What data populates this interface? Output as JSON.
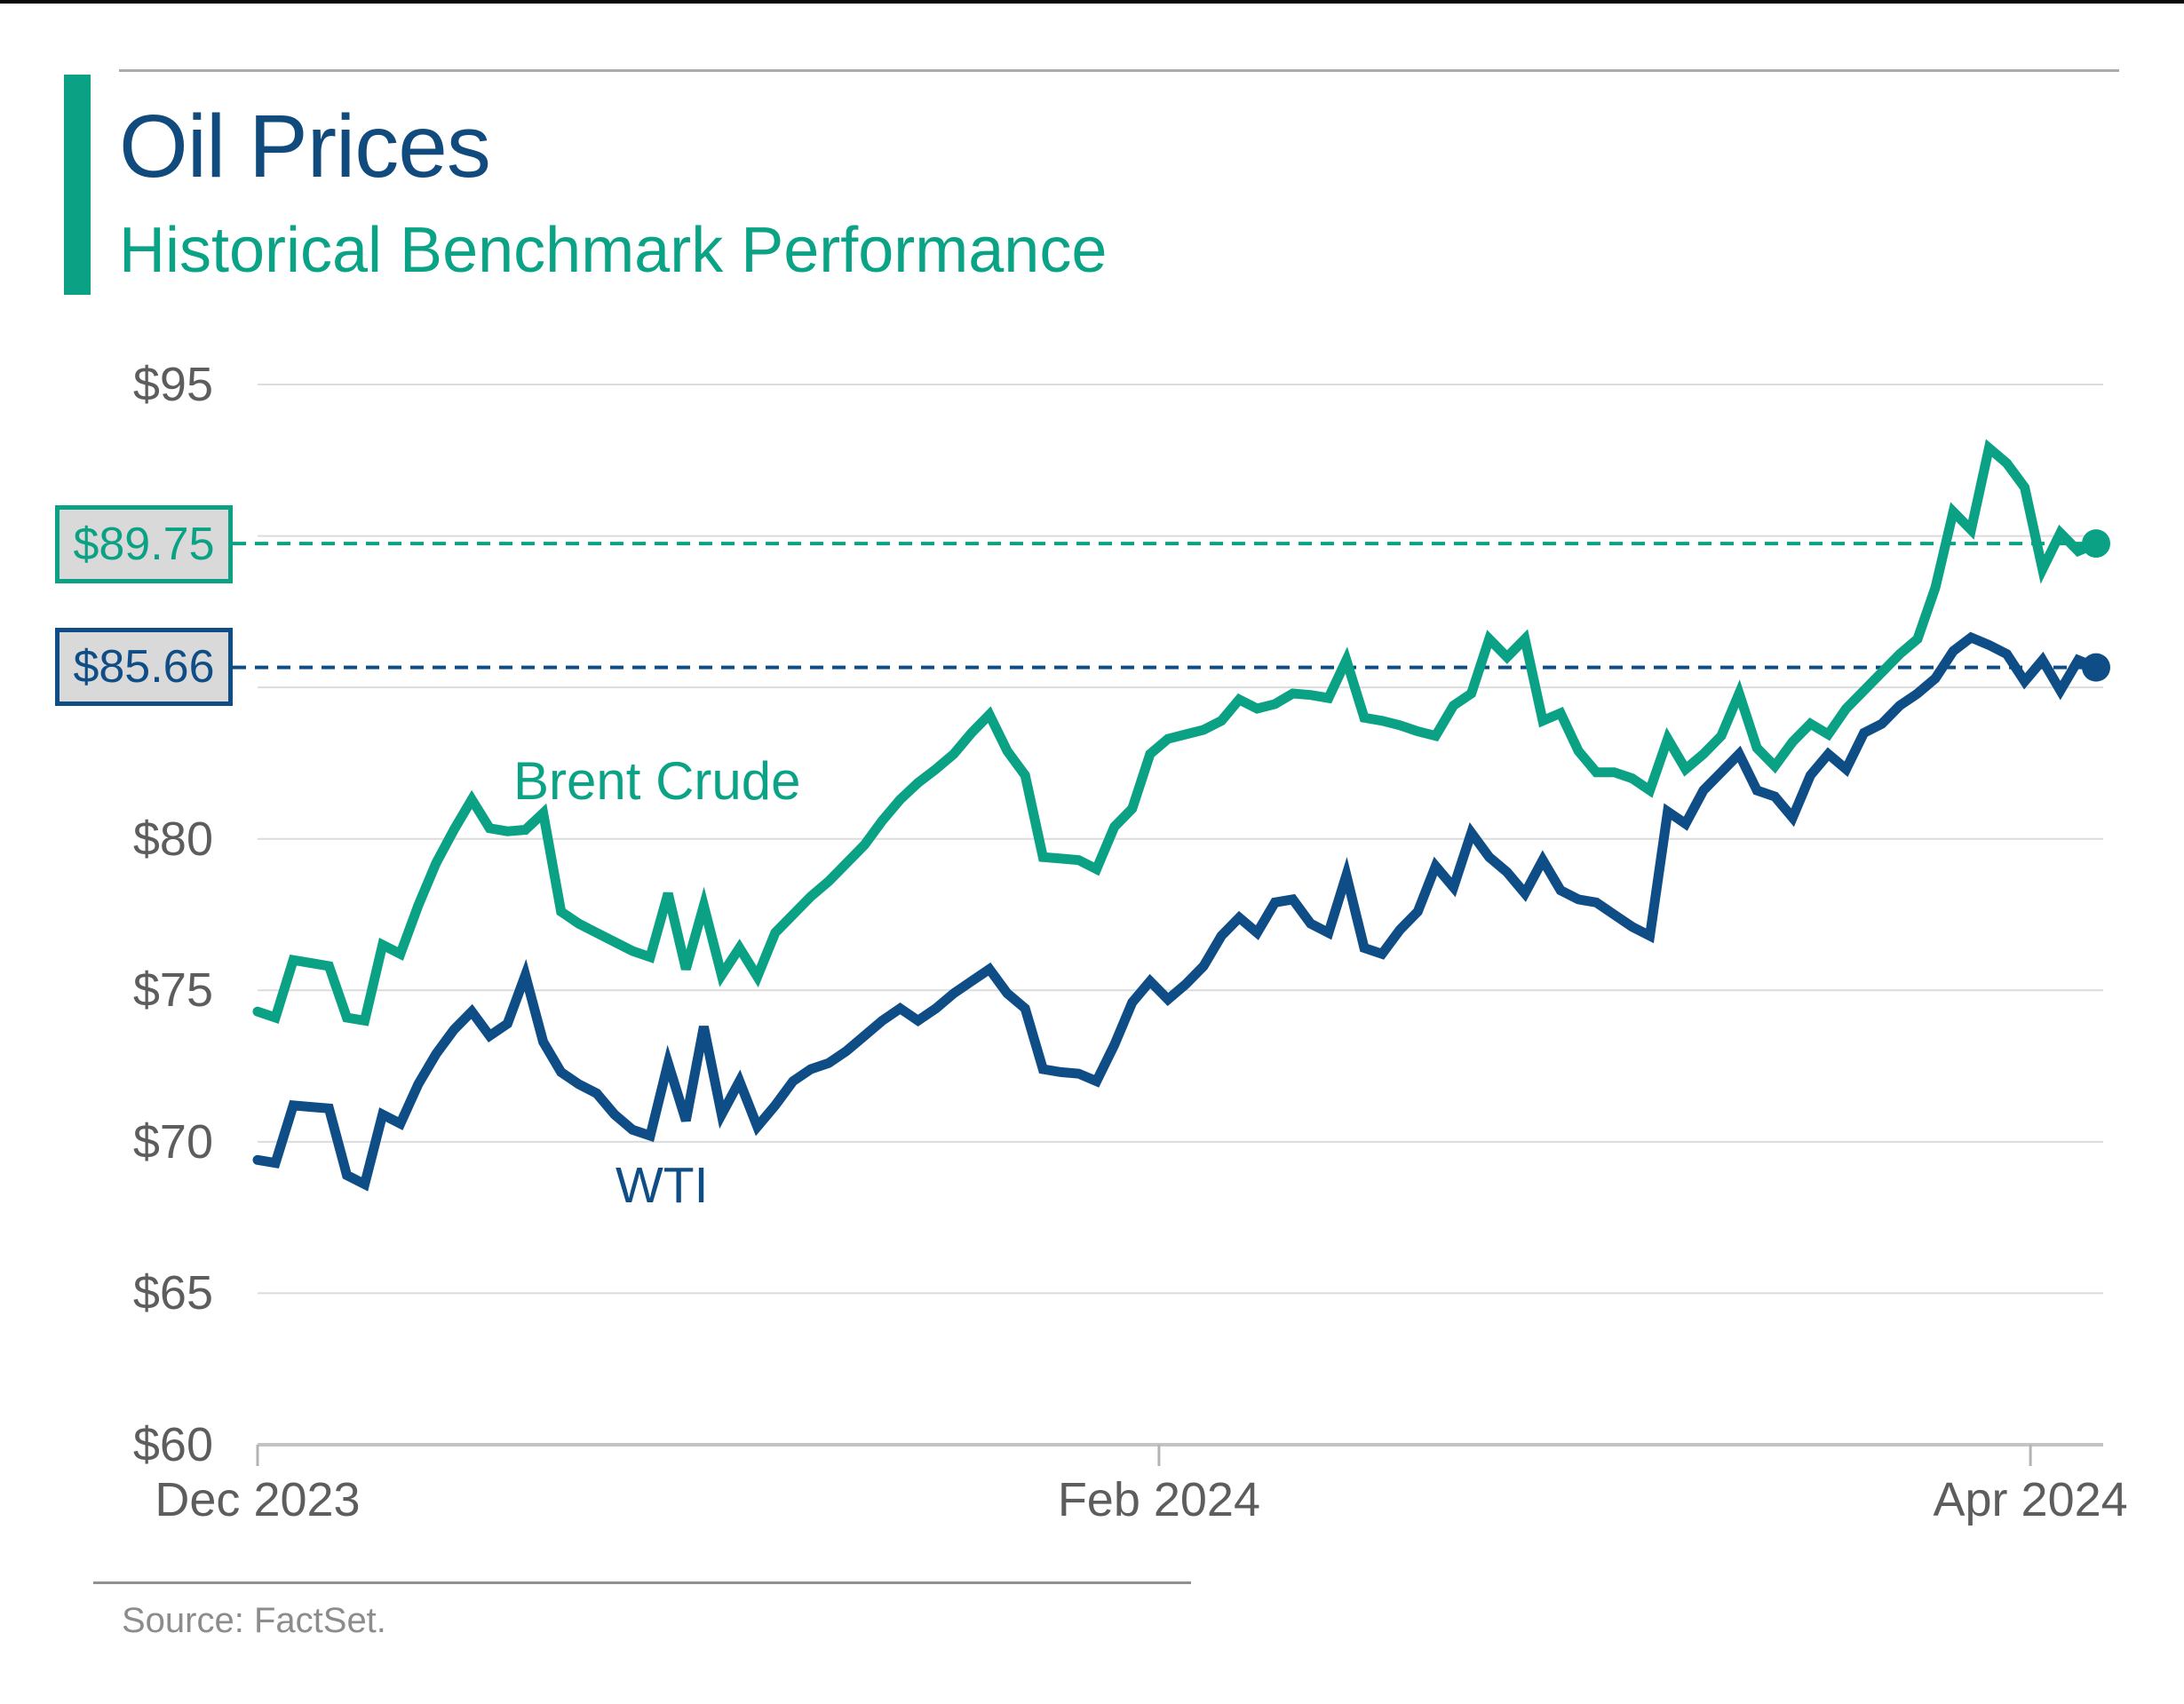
{
  "header": {
    "title": "Oil Prices",
    "subtitle": "Historical Benchmark Performance"
  },
  "source": {
    "label": "Source: FactSet."
  },
  "colors": {
    "brent_teal": "#0aa184",
    "wti_navy": "#0e4d85",
    "title_navy": "#114b7e",
    "gridline_gray": "#dcdcdc",
    "axis_baseline_gray": "#c4c4c4",
    "tick_gray": "#b4b4b4",
    "label_gray": "#5d5d5d",
    "callout_fill_gray": "#d9d9d9"
  },
  "chart_data": {
    "type": "line",
    "title": "Oil Prices",
    "subtitle": "Historical Benchmark Performance",
    "xlabel": "",
    "ylabel": "",
    "ylim": [
      60,
      95
    ],
    "grid": "horizontal-only",
    "legend_position": "inline-labels",
    "gridline_values": [
      95,
      90,
      85,
      80,
      75,
      70,
      65
    ],
    "baseline_value": 60,
    "y_axis": {
      "ticks": [
        {
          "label": "$95",
          "value": 95
        },
        {
          "label": "$80",
          "value": 80
        },
        {
          "label": "$75",
          "value": 75
        },
        {
          "label": "$70",
          "value": 70
        },
        {
          "label": "$65",
          "value": 65
        },
        {
          "label": "$60",
          "value": 60
        }
      ]
    },
    "x_axis": {
      "ticks": [
        {
          "label": "Dec 2023",
          "t": 0.0
        },
        {
          "label": "Feb 2024",
          "t": 0.4903
        },
        {
          "label": "Apr 2024",
          "t": 0.9643
        }
      ]
    },
    "series": [
      {
        "name": "Brent Crude",
        "color": "#0aa184",
        "last_value": 89.75,
        "last_label": "$89.75",
        "values": [
          74.3,
          74.1,
          76.0,
          75.9,
          75.8,
          74.1,
          74.0,
          76.5,
          76.2,
          77.8,
          79.2,
          80.3,
          81.3,
          80.35,
          80.25,
          80.3,
          80.85,
          77.6,
          77.2,
          76.9,
          76.6,
          76.3,
          76.1,
          78.2,
          75.7,
          77.8,
          75.5,
          76.4,
          75.45,
          76.9,
          77.5,
          78.1,
          78.6,
          79.2,
          79.8,
          80.6,
          81.3,
          81.85,
          82.3,
          82.8,
          83.5,
          84.1,
          82.9,
          82.1,
          79.4,
          79.35,
          79.3,
          79.0,
          80.4,
          81.0,
          82.8,
          83.3,
          83.45,
          83.6,
          83.9,
          84.6,
          84.3,
          84.45,
          84.8,
          84.75,
          84.65,
          85.9,
          84.0,
          83.9,
          83.75,
          83.55,
          83.4,
          84.4,
          84.8,
          86.6,
          86.0,
          86.6,
          83.9,
          84.15,
          82.9,
          82.2,
          82.2,
          82.0,
          81.6,
          83.3,
          82.3,
          82.8,
          83.4,
          84.8,
          83.0,
          82.4,
          83.2,
          83.8,
          83.45,
          84.3,
          84.9,
          85.5,
          86.1,
          86.6,
          88.3,
          90.8,
          90.2,
          92.9,
          92.4,
          91.6,
          88.9,
          90.1,
          89.5,
          89.75
        ]
      },
      {
        "name": "WTI",
        "color": "#0e4d85",
        "last_value": 85.66,
        "last_label": "$85.66",
        "values": [
          69.4,
          69.3,
          71.2,
          71.15,
          71.1,
          68.9,
          68.6,
          70.9,
          70.6,
          71.9,
          72.9,
          73.7,
          74.3,
          73.5,
          73.9,
          75.5,
          73.3,
          72.3,
          71.9,
          71.6,
          70.9,
          70.4,
          70.2,
          72.6,
          70.7,
          73.8,
          70.9,
          72.0,
          70.5,
          71.2,
          72.0,
          72.4,
          72.6,
          73.0,
          73.5,
          74.0,
          74.4,
          74.0,
          74.4,
          74.9,
          75.3,
          75.7,
          74.9,
          74.4,
          72.4,
          72.3,
          72.25,
          72.0,
          73.2,
          74.6,
          75.3,
          74.7,
          75.2,
          75.8,
          76.8,
          77.4,
          76.9,
          77.9,
          78.0,
          77.2,
          76.9,
          78.8,
          76.4,
          76.2,
          77.0,
          77.6,
          79.1,
          78.4,
          80.2,
          79.4,
          78.9,
          78.2,
          79.3,
          78.3,
          78.0,
          77.9,
          77.5,
          77.1,
          76.8,
          80.9,
          80.5,
          81.6,
          82.2,
          82.8,
          81.6,
          81.4,
          80.7,
          82.1,
          82.8,
          82.3,
          83.5,
          83.8,
          84.4,
          84.8,
          85.3,
          86.2,
          86.65,
          86.4,
          86.1,
          85.2,
          85.9,
          84.9,
          85.9,
          85.66
        ]
      }
    ]
  }
}
